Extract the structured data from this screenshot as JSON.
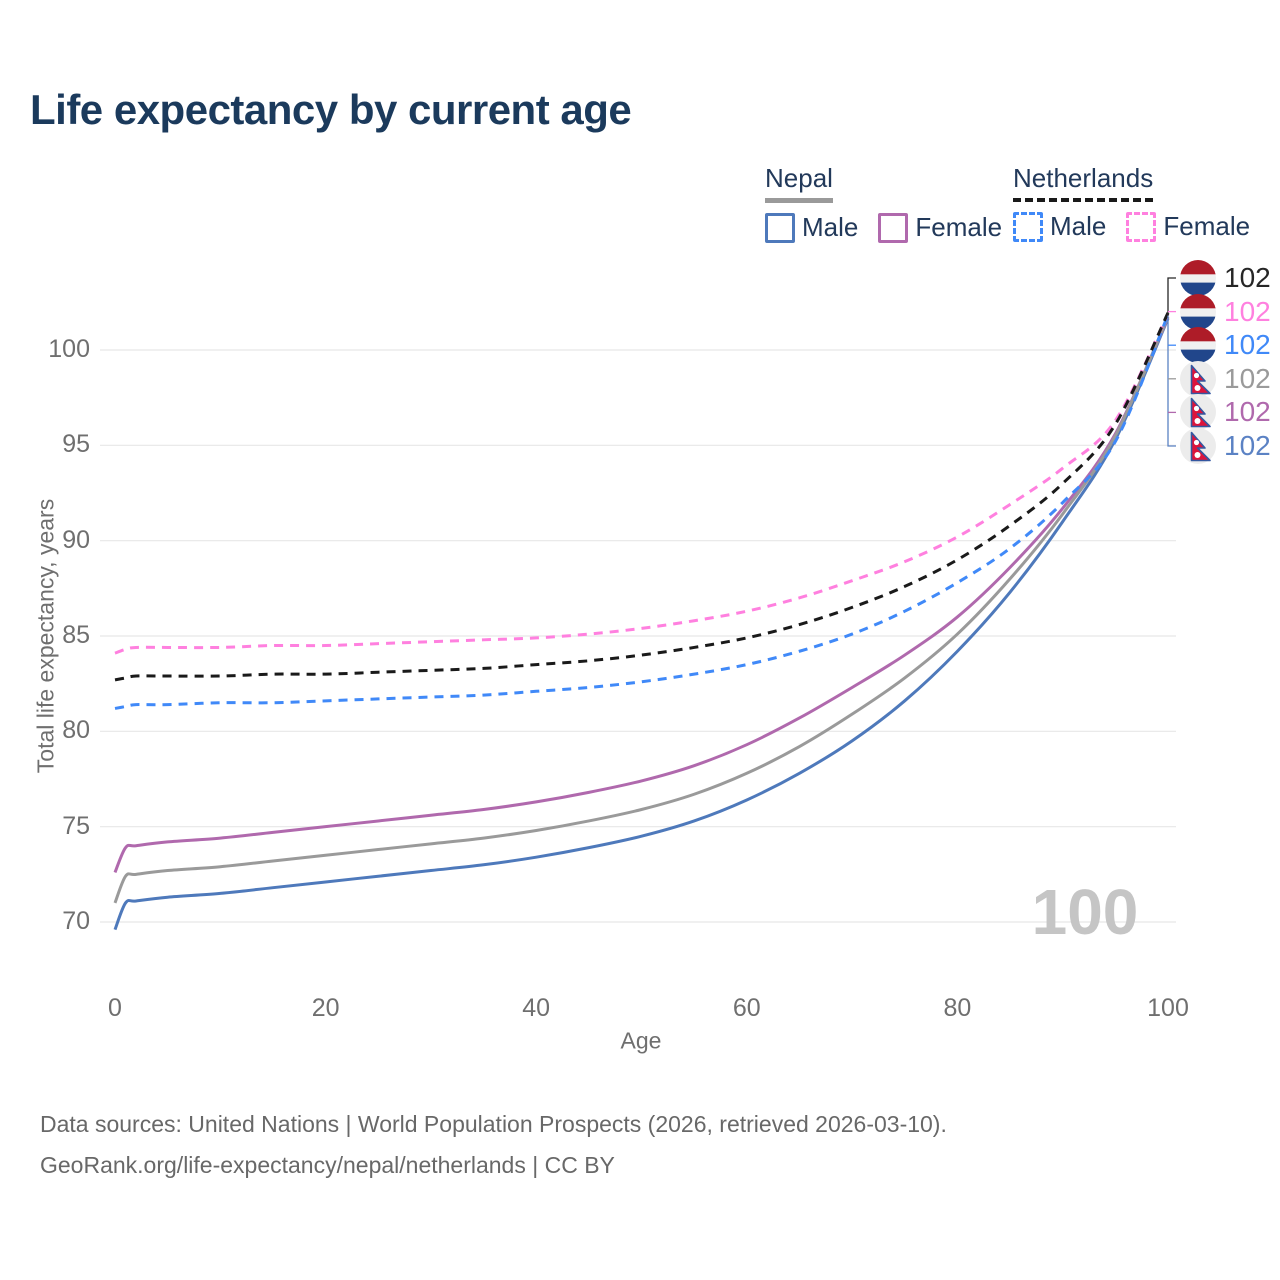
{
  "title": "Life expectancy by current age",
  "legend": {
    "groups": [
      {
        "name": "Nepal",
        "line_style": "solid",
        "underline_color": "#9a9a9a",
        "items": [
          {
            "label": "Male",
            "color": "#4e79bb"
          },
          {
            "label": "Female",
            "color": "#b069ad"
          }
        ]
      },
      {
        "name": "Netherlands",
        "line_style": "dashed",
        "underline_color": "#1a1a1a",
        "items": [
          {
            "label": "Male",
            "color": "#4089f8"
          },
          {
            "label": "Female",
            "color": "#ff80df"
          }
        ]
      }
    ]
  },
  "chart_data": {
    "type": "line",
    "title": "Life expectancy by current age",
    "xlabel": "Age",
    "ylabel": "Total life expectancy, years",
    "watermark": "100",
    "grid": true,
    "legend_position": "top-right",
    "xlim": [
      0,
      100
    ],
    "ylim": [
      68.5,
      102.5
    ],
    "x_ticks": [
      0,
      20,
      40,
      60,
      80,
      100
    ],
    "y_ticks": [
      70,
      75,
      80,
      85,
      90,
      95,
      100
    ],
    "x": [
      0,
      1,
      2,
      5,
      10,
      15,
      20,
      25,
      30,
      35,
      40,
      45,
      50,
      55,
      60,
      65,
      70,
      75,
      80,
      85,
      90,
      95,
      100
    ],
    "series": [
      {
        "name": "Netherlands",
        "country": "Netherlands",
        "sex": "Both",
        "style": "dashed",
        "color": "#1a1a1a",
        "end_label": "102",
        "label_color": "#262626",
        "flag": "netherlands",
        "values": [
          82.7,
          82.8,
          82.9,
          82.9,
          82.9,
          83.0,
          83.0,
          83.1,
          83.2,
          83.3,
          83.5,
          83.7,
          84.0,
          84.4,
          84.9,
          85.6,
          86.5,
          87.6,
          89.0,
          90.8,
          93.0,
          96.1,
          101.95
        ]
      },
      {
        "name": "Netherlands Female",
        "country": "Netherlands",
        "sex": "Female",
        "style": "dashed",
        "color": "#ff80df",
        "end_label": "102",
        "label_color": "#ff80df",
        "flag": "netherlands",
        "values": [
          84.1,
          84.3,
          84.4,
          84.4,
          84.4,
          84.5,
          84.5,
          84.6,
          84.7,
          84.8,
          84.9,
          85.1,
          85.4,
          85.8,
          86.3,
          87.0,
          87.9,
          88.9,
          90.2,
          91.9,
          93.8,
          96.3,
          101.9
        ]
      },
      {
        "name": "Netherlands Male",
        "country": "Netherlands",
        "sex": "Male",
        "style": "dashed",
        "color": "#4089f8",
        "end_label": "102",
        "label_color": "#4089f8",
        "flag": "netherlands",
        "values": [
          81.2,
          81.3,
          81.4,
          81.4,
          81.5,
          81.5,
          81.6,
          81.7,
          81.8,
          81.9,
          82.1,
          82.3,
          82.6,
          83.0,
          83.5,
          84.2,
          85.1,
          86.3,
          87.8,
          89.6,
          92.0,
          95.2,
          101.85
        ]
      },
      {
        "name": "Nepal",
        "country": "Nepal",
        "sex": "Both",
        "style": "solid",
        "color": "#9a9a9a",
        "end_label": "102",
        "label_color": "#9a9a9a",
        "flag": "nepal",
        "values": [
          71.0,
          72.4,
          72.5,
          72.7,
          72.9,
          73.2,
          73.5,
          73.8,
          74.1,
          74.4,
          74.8,
          75.3,
          75.9,
          76.7,
          77.8,
          79.2,
          80.9,
          82.8,
          85.1,
          88.0,
          91.4,
          95.5,
          101.75
        ]
      },
      {
        "name": "Nepal Female",
        "country": "Nepal",
        "sex": "Female",
        "style": "solid",
        "color": "#b069ad",
        "end_label": "102",
        "label_color": "#b069ad",
        "flag": "nepal",
        "values": [
          72.6,
          73.9,
          74.0,
          74.2,
          74.4,
          74.7,
          75.0,
          75.3,
          75.6,
          75.9,
          76.3,
          76.8,
          77.4,
          78.2,
          79.3,
          80.7,
          82.3,
          84.0,
          86.0,
          88.6,
          91.7,
          95.6,
          101.7
        ]
      },
      {
        "name": "Nepal Male",
        "country": "Nepal",
        "sex": "Male",
        "style": "solid",
        "color": "#4e79bb",
        "end_label": "102",
        "label_color": "#5b82c4",
        "flag": "nepal",
        "values": [
          69.6,
          71.0,
          71.1,
          71.3,
          71.5,
          71.8,
          72.1,
          72.4,
          72.7,
          73.0,
          73.4,
          73.9,
          74.5,
          75.3,
          76.4,
          77.8,
          79.5,
          81.6,
          84.2,
          87.3,
          91.0,
          95.3,
          101.65
        ]
      }
    ]
  },
  "colors": {
    "title": "#1b3a5c",
    "axis_text": "#6f6f6f",
    "grid": "#e7e7e7",
    "watermark": "#c5c5c5",
    "nepal_flag_red": "#dc143c",
    "nepal_flag_blue": "#3457a0",
    "nl_flag_red": "#ae1c28",
    "nl_flag_blue": "#21468b"
  },
  "footer": {
    "line1": "Data sources: United Nations | World Population Prospects (2026, retrieved 2026-03-10).",
    "line2": "GeoRank.org/life-expectancy/nepal/netherlands | CC BY"
  }
}
